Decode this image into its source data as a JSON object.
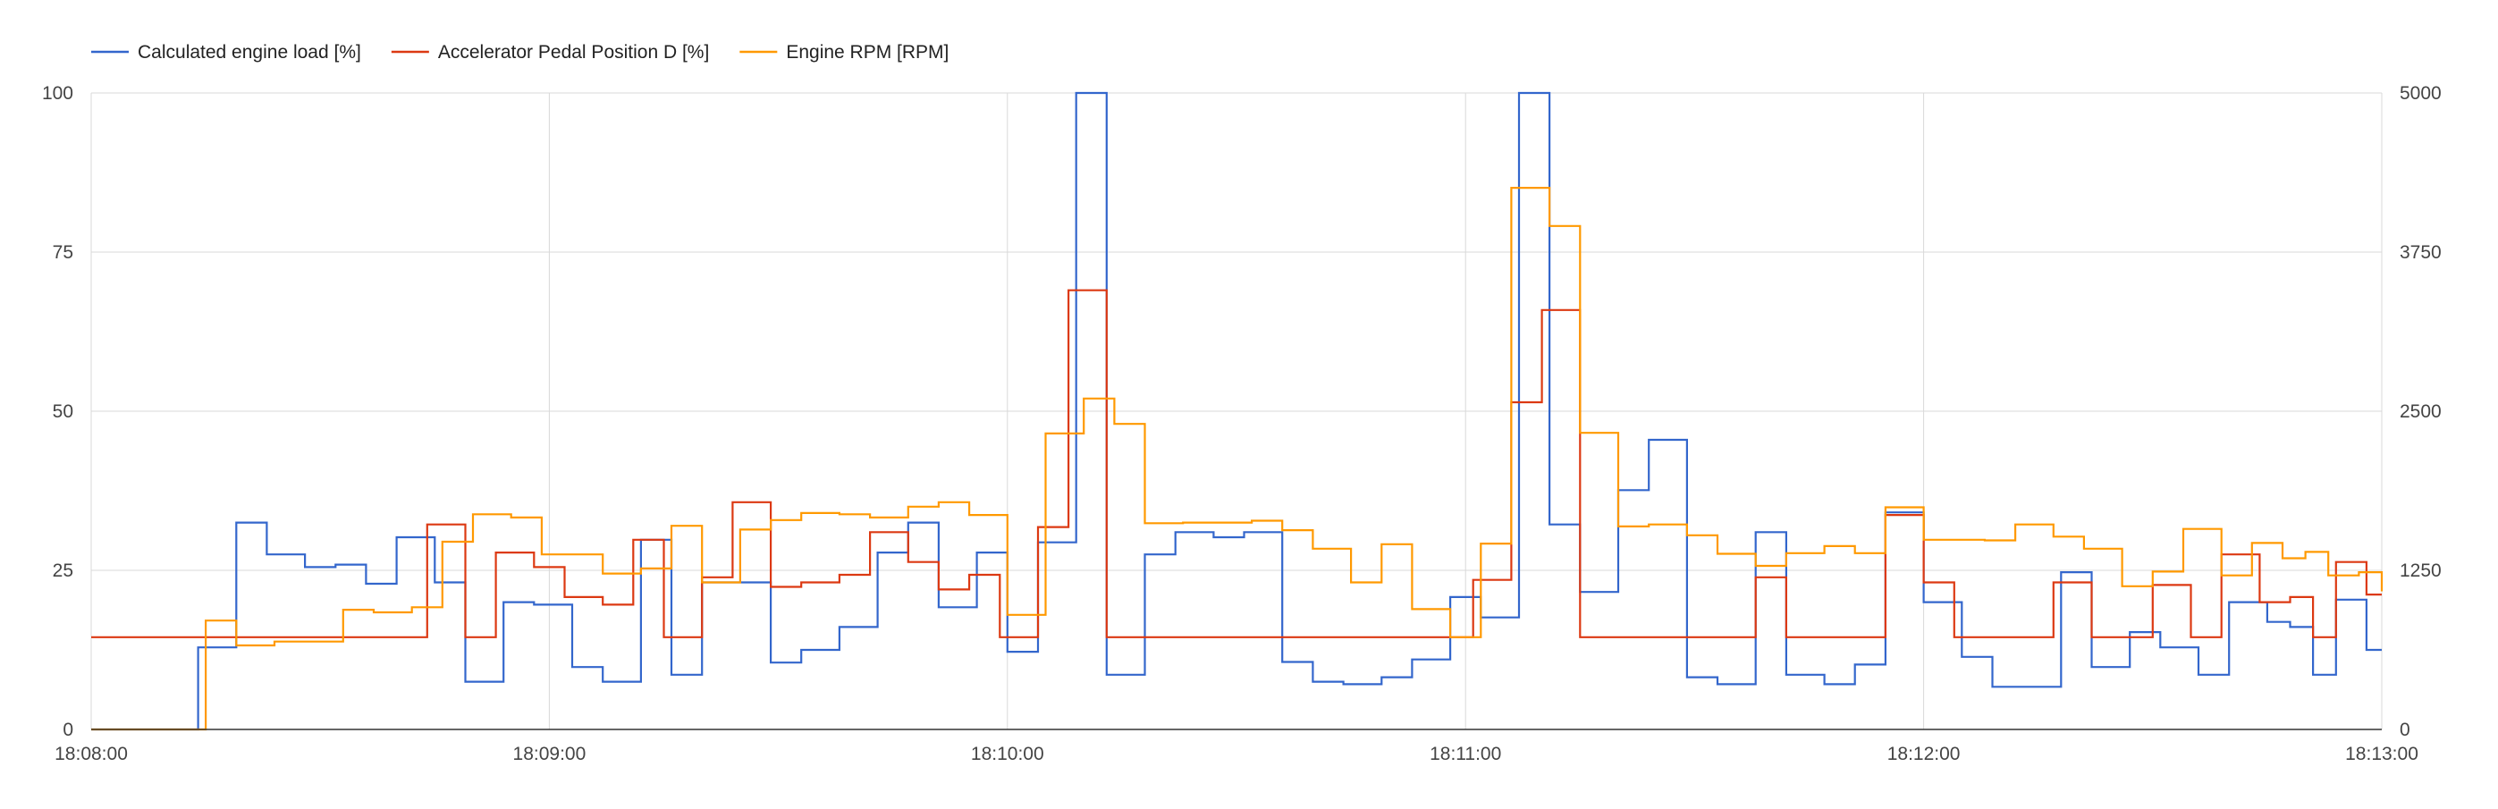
{
  "chart_data": {
    "type": "line",
    "title": "",
    "xlabel": "",
    "ylabel": "",
    "x_range": [
      "18:08:00",
      "18:13:00"
    ],
    "ylim_left": [
      0,
      100
    ],
    "ylim_right": [
      0,
      5000
    ],
    "y_ticks_left": [
      "0",
      "25",
      "50",
      "75",
      "100"
    ],
    "y_ticks_right": [
      "0",
      "1250",
      "2500",
      "3750",
      "5000"
    ],
    "x_ticks": [
      "18:08:00",
      "18:09:00",
      "18:10:00",
      "18:11:00",
      "18:12:00",
      "18:13:00"
    ],
    "grid": true,
    "legend_position": "top-left",
    "step_interpolation": "step-after",
    "series": [
      {
        "name": "Calculated engine load [%]",
        "axis": "left",
        "color": "#3366cc",
        "points": [
          [
            "18:08:00",
            0
          ],
          [
            "18:08:14",
            12.9
          ],
          [
            "18:08:19",
            32.5
          ],
          [
            "18:08:23",
            27.5
          ],
          [
            "18:08:28",
            25.5
          ],
          [
            "18:08:32",
            25.9
          ],
          [
            "18:08:36",
            22.9
          ],
          [
            "18:08:40",
            30.2
          ],
          [
            "18:08:45",
            23.1
          ],
          [
            "18:08:49",
            7.5
          ],
          [
            "18:08:54",
            20.0
          ],
          [
            "18:08:58",
            19.6
          ],
          [
            "18:09:03",
            9.8
          ],
          [
            "18:09:07",
            7.5
          ],
          [
            "18:09:12",
            29.8
          ],
          [
            "18:09:16",
            8.6
          ],
          [
            "18:09:20",
            23.1
          ],
          [
            "18:09:29",
            10.5
          ],
          [
            "18:09:33",
            12.5
          ],
          [
            "18:09:38",
            16.1
          ],
          [
            "18:09:43",
            27.8
          ],
          [
            "18:09:47",
            32.5
          ],
          [
            "18:09:51",
            19.2
          ],
          [
            "18:09:56",
            27.8
          ],
          [
            "18:10:00",
            12.2
          ],
          [
            "18:10:04",
            29.4
          ],
          [
            "18:10:09",
            100
          ],
          [
            "18:10:13",
            8.6
          ],
          [
            "18:10:18",
            27.5
          ],
          [
            "18:10:22",
            31.0
          ],
          [
            "18:10:27",
            30.2
          ],
          [
            "18:10:31",
            31.0
          ],
          [
            "18:10:36",
            10.6
          ],
          [
            "18:10:40",
            7.5
          ],
          [
            "18:10:44",
            7.1
          ],
          [
            "18:10:49",
            8.2
          ],
          [
            "18:10:53",
            11.0
          ],
          [
            "18:10:58",
            20.8
          ],
          [
            "18:11:02",
            17.6
          ],
          [
            "18:11:07",
            100
          ],
          [
            "18:11:11",
            32.2
          ],
          [
            "18:11:15",
            21.6
          ],
          [
            "18:11:20",
            37.6
          ],
          [
            "18:11:24",
            45.5
          ],
          [
            "18:11:29",
            8.2
          ],
          [
            "18:11:33",
            7.1
          ],
          [
            "18:11:38",
            31.0
          ],
          [
            "18:11:42",
            8.6
          ],
          [
            "18:11:47",
            7.1
          ],
          [
            "18:11:51",
            10.2
          ],
          [
            "18:11:55",
            34.1
          ],
          [
            "18:12:00",
            20.0
          ],
          [
            "18:12:05",
            11.4
          ],
          [
            "18:12:09",
            6.7
          ],
          [
            "18:12:18",
            24.7
          ],
          [
            "18:12:22",
            9.8
          ],
          [
            "18:12:27",
            15.3
          ],
          [
            "18:12:31",
            12.9
          ],
          [
            "18:12:36",
            8.6
          ],
          [
            "18:12:40",
            20.0
          ],
          [
            "18:12:45",
            16.9
          ],
          [
            "18:12:48",
            16.1
          ],
          [
            "18:12:51",
            8.6
          ],
          [
            "18:12:54",
            20.4
          ],
          [
            "18:12:58",
            12.5
          ],
          [
            "18:13:00",
            12.5
          ]
        ]
      },
      {
        "name": "Accelerator Pedal Position D [%]",
        "axis": "left",
        "color": "#dc3912",
        "points": [
          [
            "18:08:00",
            14.5
          ],
          [
            "18:08:44",
            32.2
          ],
          [
            "18:08:49",
            14.5
          ],
          [
            "18:08:53",
            27.8
          ],
          [
            "18:08:58",
            25.5
          ],
          [
            "18:09:02",
            20.8
          ],
          [
            "18:09:07",
            19.6
          ],
          [
            "18:09:11",
            29.8
          ],
          [
            "18:09:15",
            14.5
          ],
          [
            "18:09:20",
            23.9
          ],
          [
            "18:09:24",
            35.7
          ],
          [
            "18:09:29",
            22.4
          ],
          [
            "18:09:33",
            23.1
          ],
          [
            "18:09:38",
            24.3
          ],
          [
            "18:09:42",
            31.0
          ],
          [
            "18:09:47",
            26.3
          ],
          [
            "18:09:51",
            22.0
          ],
          [
            "18:09:55",
            24.3
          ],
          [
            "18:09:59",
            14.5
          ],
          [
            "18:10:04",
            31.8
          ],
          [
            "18:10:08",
            69.0
          ],
          [
            "18:10:13",
            14.5
          ],
          [
            "18:10:55",
            14.5
          ],
          [
            "18:11:01",
            23.5
          ],
          [
            "18:11:06",
            51.4
          ],
          [
            "18:11:10",
            65.9
          ],
          [
            "18:11:15",
            14.5
          ],
          [
            "18:11:38",
            23.9
          ],
          [
            "18:11:42",
            14.5
          ],
          [
            "18:11:55",
            33.7
          ],
          [
            "18:12:00",
            23.1
          ],
          [
            "18:12:04",
            14.5
          ],
          [
            "18:12:17",
            23.1
          ],
          [
            "18:12:22",
            14.5
          ],
          [
            "18:12:30",
            22.7
          ],
          [
            "18:12:35",
            14.5
          ],
          [
            "18:12:39",
            27.5
          ],
          [
            "18:12:44",
            20.0
          ],
          [
            "18:12:48",
            20.8
          ],
          [
            "18:12:51",
            14.5
          ],
          [
            "18:12:54",
            26.3
          ],
          [
            "18:12:58",
            21.2
          ],
          [
            "18:13:00",
            21.2
          ]
        ]
      },
      {
        "name": "Engine RPM [RPM]",
        "axis": "right",
        "color": "#ff9900",
        "points": [
          [
            "18:08:00",
            0
          ],
          [
            "18:08:15",
            855
          ],
          [
            "18:08:19",
            660
          ],
          [
            "18:08:24",
            690
          ],
          [
            "18:08:33",
            940
          ],
          [
            "18:08:37",
            920
          ],
          [
            "18:08:42",
            960
          ],
          [
            "18:08:46",
            1475
          ],
          [
            "18:08:50",
            1690
          ],
          [
            "18:08:55",
            1665
          ],
          [
            "18:08:59",
            1375
          ],
          [
            "18:09:07",
            1225
          ],
          [
            "18:09:12",
            1265
          ],
          [
            "18:09:16",
            1600
          ],
          [
            "18:09:20",
            1155
          ],
          [
            "18:09:25",
            1570
          ],
          [
            "18:09:29",
            1645
          ],
          [
            "18:09:33",
            1700
          ],
          [
            "18:09:38",
            1690
          ],
          [
            "18:09:42",
            1665
          ],
          [
            "18:09:47",
            1750
          ],
          [
            "18:09:51",
            1785
          ],
          [
            "18:09:55",
            1685
          ],
          [
            "18:10:00",
            900
          ],
          [
            "18:10:05",
            2325
          ],
          [
            "18:10:10",
            2600
          ],
          [
            "18:10:14",
            2400
          ],
          [
            "18:10:18",
            1620
          ],
          [
            "18:10:23",
            1625
          ],
          [
            "18:10:32",
            1640
          ],
          [
            "18:10:36",
            1565
          ],
          [
            "18:10:40",
            1420
          ],
          [
            "18:10:45",
            1155
          ],
          [
            "18:10:49",
            1455
          ],
          [
            "18:10:53",
            945
          ],
          [
            "18:10:58",
            725
          ],
          [
            "18:11:02",
            1460
          ],
          [
            "18:11:06",
            4255
          ],
          [
            "18:11:11",
            3955
          ],
          [
            "18:11:15",
            2330
          ],
          [
            "18:11:20",
            1595
          ],
          [
            "18:11:24",
            1610
          ],
          [
            "18:11:29",
            1525
          ],
          [
            "18:11:33",
            1380
          ],
          [
            "18:11:38",
            1285
          ],
          [
            "18:11:42",
            1385
          ],
          [
            "18:11:47",
            1440
          ],
          [
            "18:11:51",
            1385
          ],
          [
            "18:11:55",
            1745
          ],
          [
            "18:12:00",
            1490
          ],
          [
            "18:12:08",
            1485
          ],
          [
            "18:12:12",
            1610
          ],
          [
            "18:12:17",
            1515
          ],
          [
            "18:12:21",
            1420
          ],
          [
            "18:12:26",
            1125
          ],
          [
            "18:12:30",
            1240
          ],
          [
            "18:12:34",
            1575
          ],
          [
            "18:12:39",
            1210
          ],
          [
            "18:12:43",
            1465
          ],
          [
            "18:12:47",
            1345
          ],
          [
            "18:12:50",
            1395
          ],
          [
            "18:12:53",
            1210
          ],
          [
            "18:12:57",
            1235
          ],
          [
            "18:13:00",
            1085
          ]
        ]
      }
    ]
  }
}
